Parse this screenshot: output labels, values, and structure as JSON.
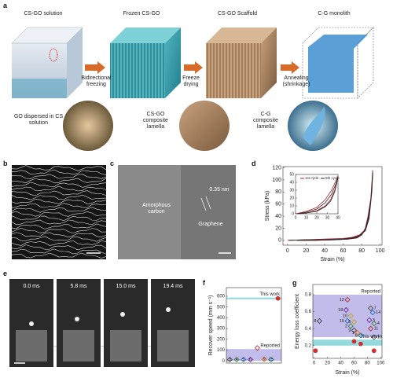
{
  "panel_labels": [
    "a",
    "b",
    "c",
    "d",
    "e",
    "f",
    "g"
  ],
  "schematic": {
    "stages": [
      "CS-GO solution",
      "Frozen CS-GO",
      "CS-GO Scaffold",
      "C-G monolith"
    ],
    "steps": [
      "Bidirectional freezing",
      "Freeze drying",
      "Annealing (shrinkage)"
    ],
    "insets": [
      "GO dispersed in CS solution",
      "CS-GO composite lamella",
      "C-G composite lamella"
    ]
  },
  "tem": {
    "labels": [
      "Amorphous carbon",
      "0.35 nm",
      "Graphene"
    ]
  },
  "snapshots": {
    "times": [
      "0.0 ms",
      "5.8 ms",
      "15.0 ms",
      "19.4 ms"
    ]
  },
  "chart_data": [
    {
      "type": "line",
      "x_label": "Strain (%)",
      "y_label": "Stress (kPa)",
      "xlim": [
        -5,
        102
      ],
      "ylim": [
        -8,
        122
      ],
      "xticks": [
        0,
        20,
        40,
        60,
        80,
        100
      ],
      "yticks": [
        0,
        20,
        40,
        60,
        80,
        100,
        120
      ],
      "series": [
        {
          "color": "#b0242b",
          "x": [
            0,
            20,
            40,
            60,
            70,
            78,
            84,
            88,
            91,
            92,
            90,
            87,
            84,
            80,
            75,
            65,
            50,
            30,
            10
          ],
          "values": [
            0,
            1,
            2,
            3,
            5,
            9,
            18,
            40,
            85,
            116,
            70,
            40,
            20,
            10,
            5,
            2,
            1,
            0,
            0
          ]
        },
        {
          "color": "#2a2a2a",
          "x": [
            2,
            20,
            40,
            60,
            70,
            78,
            84,
            88,
            91,
            92,
            90,
            87,
            84,
            80,
            75,
            65,
            50,
            30,
            10
          ],
          "values": [
            0,
            1,
            1,
            2,
            4,
            8,
            16,
            36,
            80,
            112,
            66,
            36,
            18,
            9,
            4,
            2,
            1,
            0,
            0
          ]
        }
      ],
      "inset": {
        "xlim": [
          0,
          40
        ],
        "ylim": [
          0,
          50
        ],
        "xticks": [
          0,
          10,
          20,
          30,
          40
        ],
        "yticks": [
          0,
          10,
          20,
          30,
          40,
          50
        ],
        "series": [
          {
            "name": "1st cycle",
            "color": "#b0242b",
            "x": [
              0,
              10,
              20,
              28,
              34,
              38,
              40,
              37,
              33,
              28,
              20,
              10,
              2
            ],
            "values": [
              0,
              3,
              8,
              18,
              30,
              42,
              48,
              30,
              18,
              10,
              4,
              1,
              0
            ]
          },
          {
            "name": "5th cycle",
            "color": "#2a2a2a",
            "x": [
              2,
              10,
              20,
              28,
              34,
              38,
              40,
              37,
              33,
              28,
              20,
              10,
              4
            ],
            "values": [
              0,
              2,
              6,
              14,
              25,
              38,
              46,
              28,
              16,
              9,
              3,
              1,
              0
            ]
          }
        ]
      }
    },
    {
      "type": "scatter",
      "y_label": "Recover speed (mm s⁻¹)",
      "ylim": [
        -20,
        680
      ],
      "yticks": [
        0,
        100,
        200,
        300,
        400,
        500,
        600
      ],
      "bands": [
        {
          "label": "Reported",
          "range": [
            0,
            110
          ],
          "color": "#b7b0e6"
        },
        {
          "label": "This work",
          "range": [
            572,
            588
          ],
          "color": "#7fd3d8"
        }
      ],
      "categories": [
        "3",
        "4",
        "5",
        "6",
        null,
        "9",
        "15",
        null
      ],
      "values": [
        12,
        12,
        12,
        12,
        120,
        15,
        12,
        580
      ],
      "colors": [
        "#333",
        "#2e7d32",
        "#1565c0",
        "#6a1b9a",
        "#b0242b",
        "#ef6c00",
        "#00838f",
        "#d32f2f"
      ]
    },
    {
      "type": "scatter",
      "x_label": "Strain (%)",
      "y_label": "Energy loss coefficient",
      "xlim": [
        -2,
        102
      ],
      "ylim": [
        0.05,
        0.92
      ],
      "xticks": [
        0,
        20,
        40,
        60,
        80,
        100
      ],
      "yticks": [
        0.2,
        0.4,
        0.6,
        0.8
      ],
      "bands": [
        {
          "label": "Reported",
          "range": [
            0.3,
            0.8
          ],
          "color": "#b7b0e6"
        },
        {
          "label": "This work",
          "range": [
            0.2,
            0.27
          ],
          "color": "#7fd3d8"
        }
      ],
      "series": [
        {
          "marker": "diamond",
          "labels": [
            "12",
            "18",
            "10",
            "15",
            "8",
            "2",
            "9",
            "1",
            "6",
            "7",
            "14",
            "3",
            "4",
            "11",
            "13",
            "5"
          ],
          "x": [
            50,
            48,
            55,
            50,
            8,
            55,
            60,
            65,
            70,
            85,
            88,
            83,
            90,
            85,
            90,
            60
          ],
          "values": [
            0.74,
            0.62,
            0.55,
            0.49,
            0.49,
            0.43,
            0.38,
            0.35,
            0.32,
            0.64,
            0.59,
            0.5,
            0.46,
            0.4,
            0.3,
            0.48
          ],
          "colors": [
            "#b0242b",
            "#6a1b9a",
            "#c0a000",
            "#1565c0",
            "#333",
            "#2e7d32",
            "#333",
            "#ef6c00",
            "#00838f",
            "#333",
            "#1565c0",
            "#6a1b9a",
            "#2e7d32",
            "#b0242b",
            "#333",
            "#c0a000"
          ]
        },
        {
          "marker": "circle",
          "color": "#d32f2f",
          "x": [
            2,
            60,
            70,
            90
          ],
          "values": [
            0.14,
            0.25,
            0.22,
            0.14
          ]
        }
      ]
    }
  ]
}
